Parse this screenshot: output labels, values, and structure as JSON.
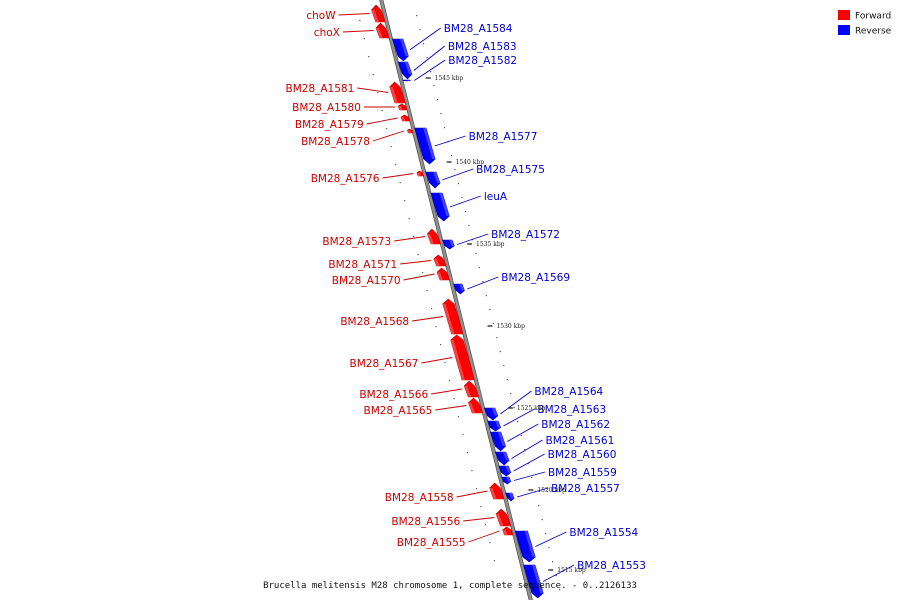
{
  "colors": {
    "forward": "#ff0000",
    "forward_dark": "#c80000",
    "forward_label": "#cc0000",
    "reverse": "#0000ff",
    "reverse_dark": "#0000b4",
    "reverse_label": "#0000cc",
    "backbone": "#909090",
    "backbone_edge": "#505050"
  },
  "legend": [
    {
      "label": "Forward",
      "color": "#ff0000"
    },
    {
      "label": "Reverse",
      "color": "#0000ff"
    }
  ],
  "caption": "Brucella melitensis M28 chromosome 1, complete sequence. - 0..2126133",
  "scale_labels": [
    "1545 kbp",
    "1540 kbp",
    "1535 kbp",
    "1530 kbp",
    "1525 kbp",
    "1520 kbp",
    "1515 kbp"
  ],
  "forward_genes": [
    {
      "name": "choW"
    },
    {
      "name": "choX"
    },
    {
      "name": "BM28_A1581"
    },
    {
      "name": "BM28_A1580"
    },
    {
      "name": "BM28_A1579"
    },
    {
      "name": "BM28_A1578"
    },
    {
      "name": "BM28_A1576"
    },
    {
      "name": "BM28_A1573"
    },
    {
      "name": "BM28_A1571"
    },
    {
      "name": "BM28_A1570"
    },
    {
      "name": "BM28_A1568"
    },
    {
      "name": "BM28_A1567"
    },
    {
      "name": "BM28_A1566"
    },
    {
      "name": "BM28_A1565"
    },
    {
      "name": "BM28_A1558"
    },
    {
      "name": "BM28_A1556"
    },
    {
      "name": "BM28_A1555"
    }
  ],
  "reverse_genes": [
    {
      "name": "BM28_A1584"
    },
    {
      "name": "BM28_A1583"
    },
    {
      "name": "BM28_A1582"
    },
    {
      "name": "BM28_A1577"
    },
    {
      "name": "BM28_A1575"
    },
    {
      "name": "leuA"
    },
    {
      "name": "BM28_A1572"
    },
    {
      "name": "BM28_A1569"
    },
    {
      "name": "BM28_A1564"
    },
    {
      "name": "BM28_A1563"
    },
    {
      "name": "BM28_A1562"
    },
    {
      "name": "BM28_A1561"
    },
    {
      "name": "BM28_A1560"
    },
    {
      "name": "BM28_A1559"
    },
    {
      "name": "BM28_A1557"
    },
    {
      "name": "BM28_A1554"
    },
    {
      "name": "BM28_A1553"
    }
  ]
}
